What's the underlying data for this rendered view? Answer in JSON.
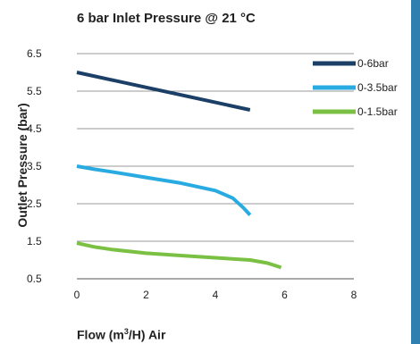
{
  "chart_data": {
    "type": "line",
    "title": "6 bar Inlet Pressure @ 21 °C",
    "xlabel": "Flow (m³/H) Air",
    "ylabel": "Outlet Pressure (bar)",
    "xlim": [
      0,
      8
    ],
    "ylim": [
      0.5,
      6.5
    ],
    "x_ticks": [
      "0",
      "2",
      "4",
      "6",
      "8"
    ],
    "y_ticks": [
      "0.5",
      "1.5",
      "2.5",
      "3.5",
      "4.5",
      "5.5",
      "6.5"
    ],
    "grid": "horizontal",
    "legend_position": "top-right",
    "series": [
      {
        "name": "0-6bar",
        "color": "#1b3f66",
        "x": [
          0,
          1,
          2,
          3,
          4,
          5
        ],
        "y": [
          6.0,
          5.8,
          5.6,
          5.4,
          5.2,
          5.0
        ]
      },
      {
        "name": "0-3.5bar",
        "color": "#29abe2",
        "x": [
          0,
          0.5,
          1,
          2,
          3,
          4,
          4.5,
          4.8,
          5.0
        ],
        "y": [
          3.5,
          3.42,
          3.35,
          3.2,
          3.05,
          2.85,
          2.65,
          2.4,
          2.2
        ]
      },
      {
        "name": "0-1.5bar",
        "color": "#7ac143",
        "x": [
          0,
          0.5,
          1,
          2,
          3,
          4,
          5,
          5.5,
          5.9
        ],
        "y": [
          1.45,
          1.35,
          1.28,
          1.18,
          1.12,
          1.06,
          1.0,
          0.92,
          0.8
        ]
      }
    ]
  }
}
